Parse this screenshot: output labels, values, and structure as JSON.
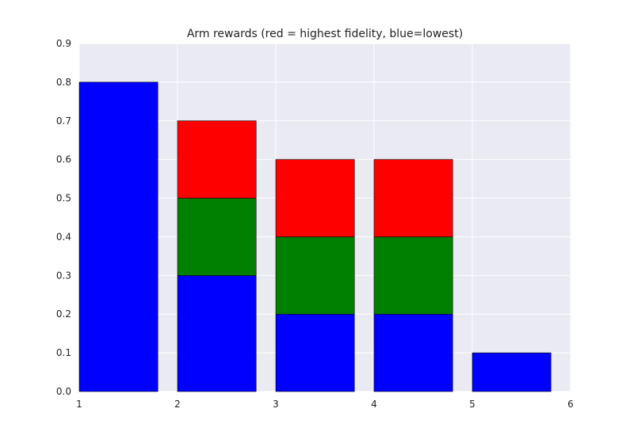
{
  "chart_data": {
    "type": "bar",
    "stacked": true,
    "title": "Arm rewards (red = highest fidelity, blue=lowest)",
    "xlabel": "",
    "ylabel": "",
    "xlim": [
      1,
      6
    ],
    "ylim": [
      0,
      0.9
    ],
    "x_ticks": [
      "1",
      "2",
      "3",
      "4",
      "5",
      "6"
    ],
    "y_ticks": [
      "0.0",
      "0.1",
      "0.2",
      "0.3",
      "0.4",
      "0.5",
      "0.6",
      "0.7",
      "0.8",
      "0.9"
    ],
    "bar_starts": [
      1,
      2,
      3,
      4,
      5
    ],
    "bar_width": 0.8,
    "grid": true,
    "colors": {
      "plot_background": "#eaeaf2",
      "grid": "#ffffff"
    },
    "series": [
      {
        "color": "#0000ff",
        "values": [
          0.8,
          0.3,
          0.2,
          0.2,
          0.1
        ]
      },
      {
        "color": "#008000",
        "values": [
          0,
          0.2,
          0.2,
          0.2,
          0
        ]
      },
      {
        "color": "#ff0000",
        "values": [
          0,
          0.2,
          0.2,
          0.2,
          0
        ]
      }
    ]
  }
}
